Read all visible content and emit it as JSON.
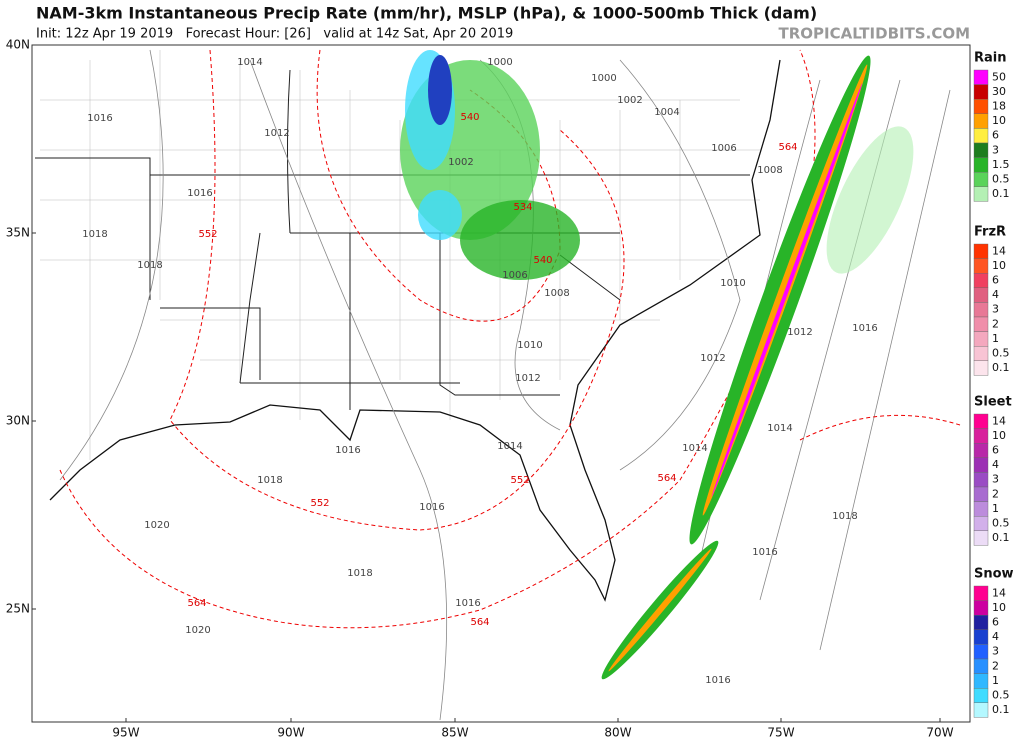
{
  "header": {
    "title": "NAM-3km Instantaneous Precip Rate (mm/hr), MSLP (hPa), & 1000-500mb Thick (dam)",
    "subtitle": "Init: 12z Apr 19 2019   Forecast Hour: [26]   valid at 14z Sat, Apr 20 2019",
    "site": "TROPICALTIDBITS.COM"
  },
  "map": {
    "lat_labels": [
      "40N",
      "35N",
      "30N",
      "25N"
    ],
    "lon_labels": [
      "95W",
      "90W",
      "85W",
      "80W",
      "75W",
      "70W"
    ],
    "isobar_labels": [
      "1014",
      "1016",
      "1012",
      "1016",
      "1018",
      "1018",
      "1000",
      "1000",
      "1002",
      "1004",
      "1002",
      "1006",
      "1008",
      "1006",
      "1008",
      "1010",
      "1012",
      "1010",
      "1012",
      "1012",
      "1016",
      "1014",
      "1016",
      "1014",
      "1014",
      "1018",
      "1016",
      "1020",
      "1018",
      "1016",
      "1020",
      "1016",
      "1018",
      "1016"
    ],
    "thickness_labels": [
      "552",
      "540",
      "540",
      "534",
      "564",
      "552",
      "552",
      "564",
      "564",
      "564"
    ]
  },
  "legend": [
    {
      "title": "Rain",
      "labels": [
        "50",
        "30",
        "18",
        "10",
        "6",
        "3",
        "1.5",
        "0.5",
        "0.1"
      ],
      "colors": [
        "#ff00ff",
        "#c80000",
        "#ff5000",
        "#ffa000",
        "#ffee40",
        "#1e7d1e",
        "#28b428",
        "#5ad35a",
        "#b4f0b4"
      ]
    },
    {
      "title": "FrzR",
      "labels": [
        "14",
        "10",
        "6",
        "4",
        "3",
        "2",
        "1",
        "0.5",
        "0.1"
      ],
      "colors": [
        "#ff3300",
        "#ff5522",
        "#f04060",
        "#e06080",
        "#e87896",
        "#f08eaa",
        "#f4a8be",
        "#f8c4d4",
        "#fce4ec"
      ]
    },
    {
      "title": "Sleet",
      "labels": [
        "14",
        "10",
        "6",
        "4",
        "3",
        "2",
        "1",
        "0.5",
        "0.1"
      ],
      "colors": [
        "#ff0090",
        "#d8209c",
        "#b828a8",
        "#9c30b4",
        "#9a4cc4",
        "#a86cd0",
        "#bc8cdc",
        "#d2b0ea",
        "#ecdcf6"
      ]
    },
    {
      "title": "Snow",
      "labels": [
        "14",
        "10",
        "6",
        "4",
        "3",
        "2",
        "1",
        "0.5",
        "0.1"
      ],
      "colors": [
        "#ff0090",
        "#cc00a0",
        "#2020a0",
        "#1840d0",
        "#2060ff",
        "#2890ff",
        "#30b8ff",
        "#40dcff",
        "#b4f8ff"
      ]
    }
  ]
}
